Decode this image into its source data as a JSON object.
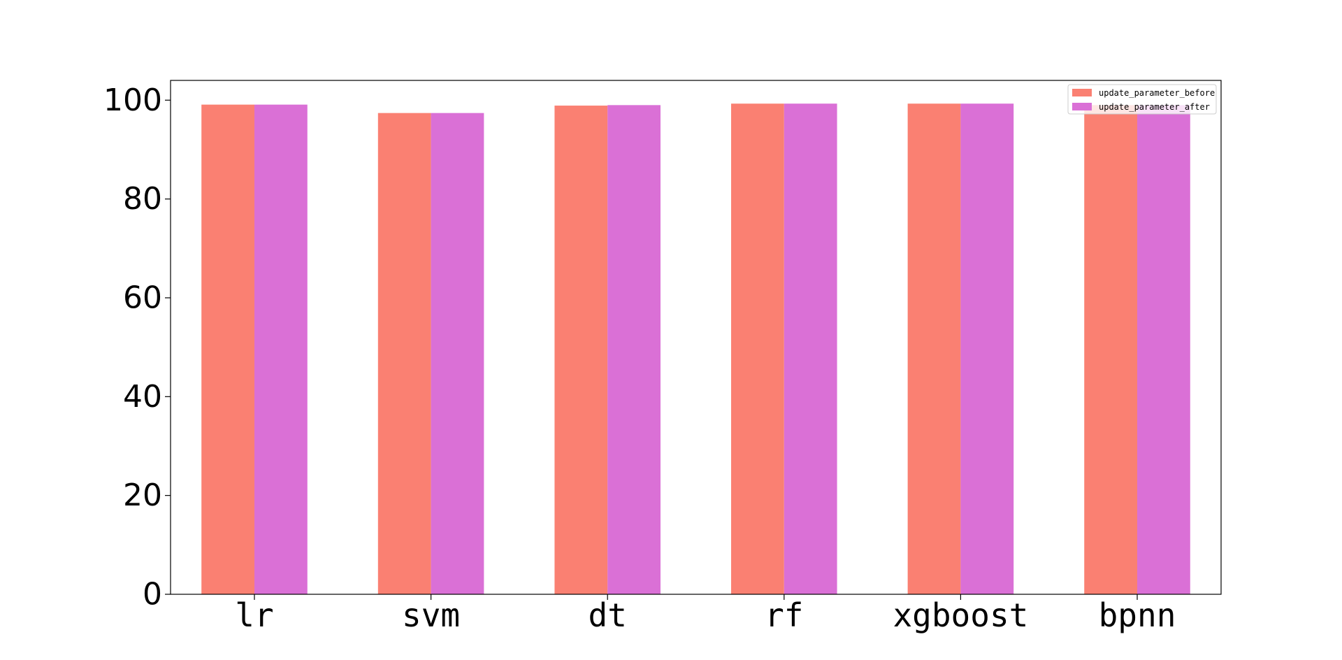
{
  "chart_data": {
    "type": "bar",
    "categories": [
      "lr",
      "svm",
      "dt",
      "rf",
      "xgboost",
      "bpnn"
    ],
    "series": [
      {
        "name": "update_parameter_before",
        "color": "#fa8072",
        "values": [
          99.1,
          97.4,
          98.9,
          99.3,
          99.3,
          99.0
        ]
      },
      {
        "name": "update_parameter_after",
        "color": "#da70d6",
        "values": [
          99.1,
          97.4,
          99.0,
          99.3,
          99.3,
          99.0
        ]
      }
    ],
    "title": "",
    "xlabel": "",
    "ylabel": "",
    "ylim": [
      0,
      104
    ],
    "yticks": [
      0,
      20,
      40,
      60,
      80,
      100
    ],
    "legend_position": "top-right",
    "grid": false
  }
}
